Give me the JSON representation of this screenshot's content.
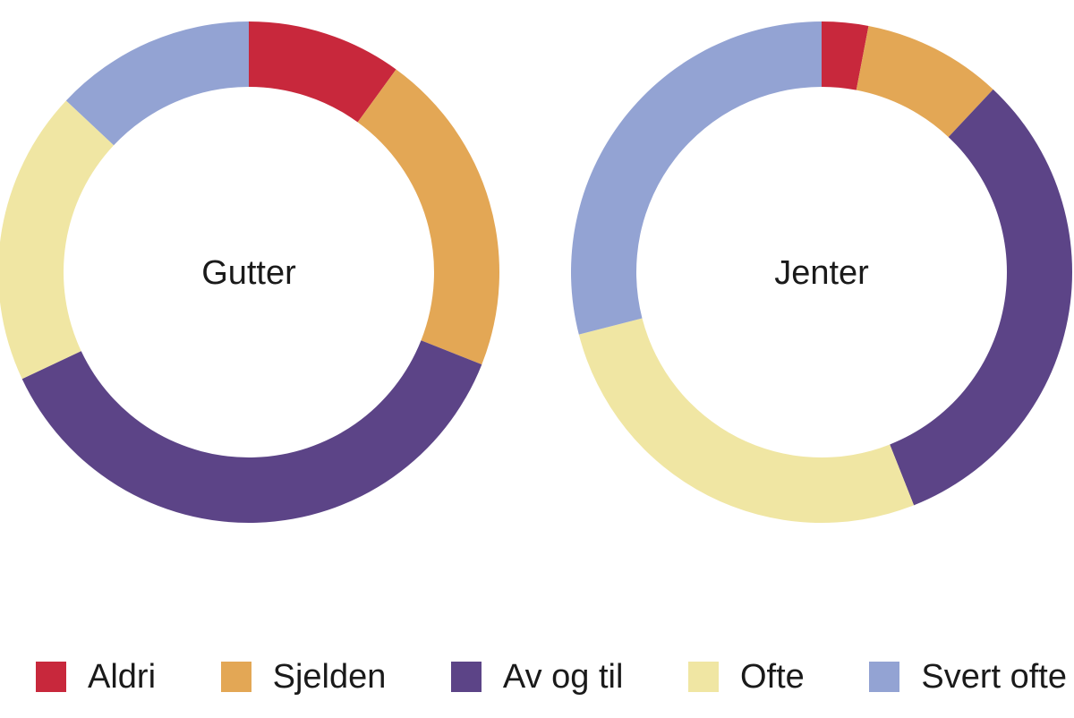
{
  "chart_data": {
    "type": "pie",
    "categories": [
      "Aldri",
      "Sjelden",
      "Av og til",
      "Ofte",
      "Svert ofte"
    ],
    "colors": [
      "#c8283c",
      "#e3a755",
      "#5c4487",
      "#f0e6a3",
      "#93a3d3"
    ],
    "legend_position": "bottom",
    "charts": [
      {
        "label": "Gutter",
        "values": [
          10,
          21,
          37,
          19,
          13
        ]
      },
      {
        "label": "Jenter",
        "values": [
          3,
          9,
          32,
          27,
          29
        ]
      }
    ]
  }
}
